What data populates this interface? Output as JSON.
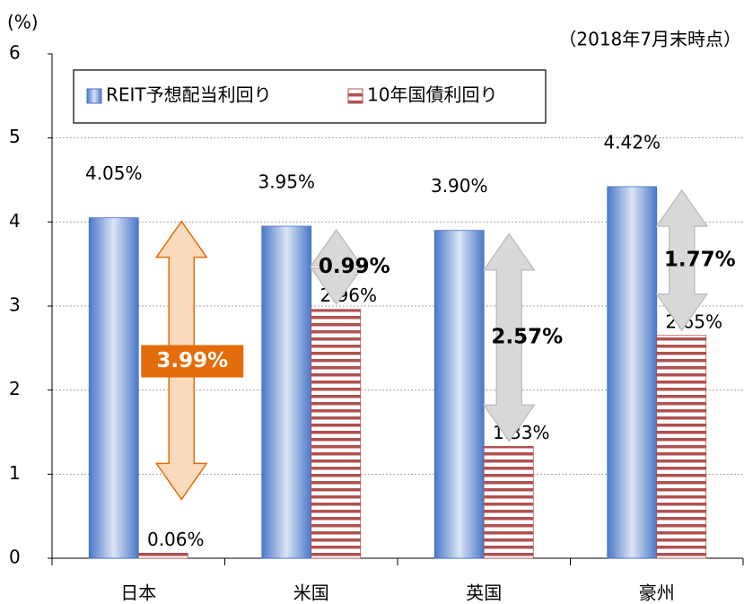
{
  "chart_data": {
    "type": "bar",
    "subtitle": "（2018年7月末時点）",
    "y_label": "(%)",
    "categories": [
      "日本",
      "米国",
      "英国",
      "豪州"
    ],
    "series": [
      {
        "name": "REIT予想配当利回り",
        "color": "#4472c4",
        "values": [
          4.05,
          3.95,
          3.9,
          4.42
        ],
        "value_labels": [
          "4.05%",
          "3.95%",
          "3.90%",
          "4.42%"
        ]
      },
      {
        "name": "10年国債利回り",
        "color": "#b05050",
        "values": [
          0.06,
          2.96,
          1.33,
          2.65
        ],
        "value_labels": [
          "0.06%",
          "2.96%",
          "1.33%",
          "2.65%"
        ]
      }
    ],
    "spreads": [
      {
        "label": "3.99%",
        "color": "#e46c0a"
      },
      {
        "label": "0.99%",
        "color": "#a6a6a6"
      },
      {
        "label": "2.57%",
        "color": "#a6a6a6"
      },
      {
        "label": "1.77%",
        "color": "#a6a6a6"
      }
    ],
    "ylim": [
      0,
      6
    ],
    "yticks": [
      0,
      1,
      2,
      3,
      4,
      5,
      6
    ],
    "grid": true,
    "legend": "top-left"
  }
}
